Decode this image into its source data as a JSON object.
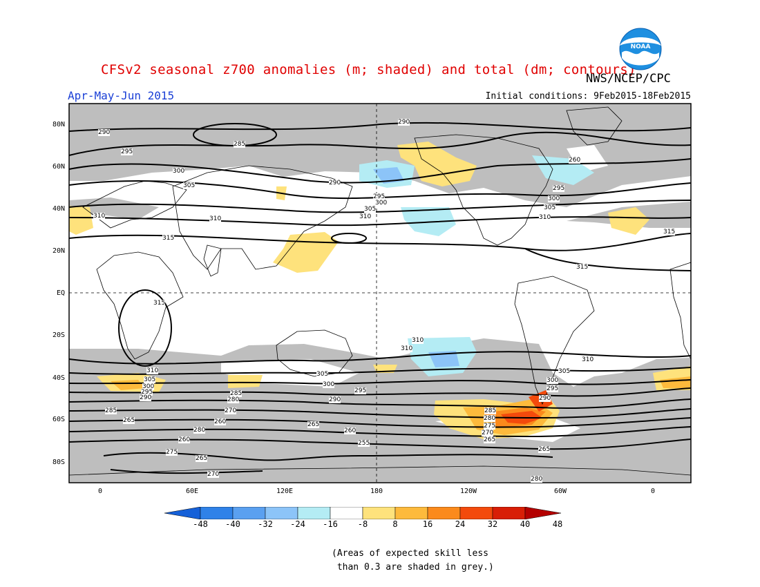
{
  "title": "CFSv2 seasonal z700 anomalies (m; shaded) and total (dm; contours)",
  "agency": "NWS/NCEP/CPC",
  "logo_text": "NOAA",
  "season": "Apr-May-Jun 2015",
  "initial_conditions": "Initial conditions: 9Feb2015-18Feb2015",
  "lat_labels": [
    "80N",
    "60N",
    "40N",
    "20N",
    "EQ",
    "20S",
    "40S",
    "60S",
    "80S"
  ],
  "lon_labels": [
    "0",
    "60E",
    "120E",
    "180",
    "120W",
    "60W",
    "0"
  ],
  "colorbar": {
    "labels": [
      "-48",
      "-40",
      "-32",
      "-24",
      "-16",
      "-8",
      "8",
      "16",
      "24",
      "32",
      "40",
      "48"
    ],
    "colors": [
      "#1560d8",
      "#2f82e8",
      "#5aa0f0",
      "#8cc4f8",
      "#b4ecf4",
      "#ffffff",
      "#fee27c",
      "#fdba3c",
      "#fb8a1c",
      "#f34a0c",
      "#d81e06",
      "#b40000"
    ]
  },
  "colors": {
    "skill_grey": "#bebebe",
    "title_red": "#e00000",
    "season_blue": "#1a3fd6"
  },
  "contour_labels": [
    "290",
    "285",
    "295",
    "300",
    "305",
    "310",
    "315",
    "290",
    "295",
    "300",
    "305",
    "310",
    "290",
    "295",
    "300",
    "305",
    "310",
    "315",
    "315",
    "315",
    "310",
    "305",
    "300",
    "295",
    "290",
    "285",
    "280",
    "270",
    "265",
    "260",
    "310",
    "305",
    "300",
    "295",
    "290",
    "285",
    "280",
    "275",
    "270",
    "265",
    "260",
    "255",
    "265",
    "260",
    "265",
    "280",
    "310",
    "305",
    "300",
    "295",
    "290",
    "285",
    "280",
    "275",
    "270",
    "265",
    "260",
    "310",
    "310"
  ],
  "note": "(Areas of expected skill less\n than 0.3 are shaded in grey.)"
}
